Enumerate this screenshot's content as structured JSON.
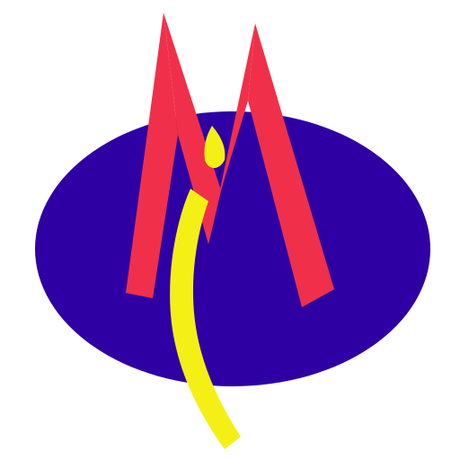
{
  "logo": {
    "icon": "m-letter-logo",
    "colors": {
      "background": "#ffffff",
      "ellipse": "#2e00a4",
      "letter": "#f0304a",
      "swoosh": "#f4f016"
    }
  }
}
